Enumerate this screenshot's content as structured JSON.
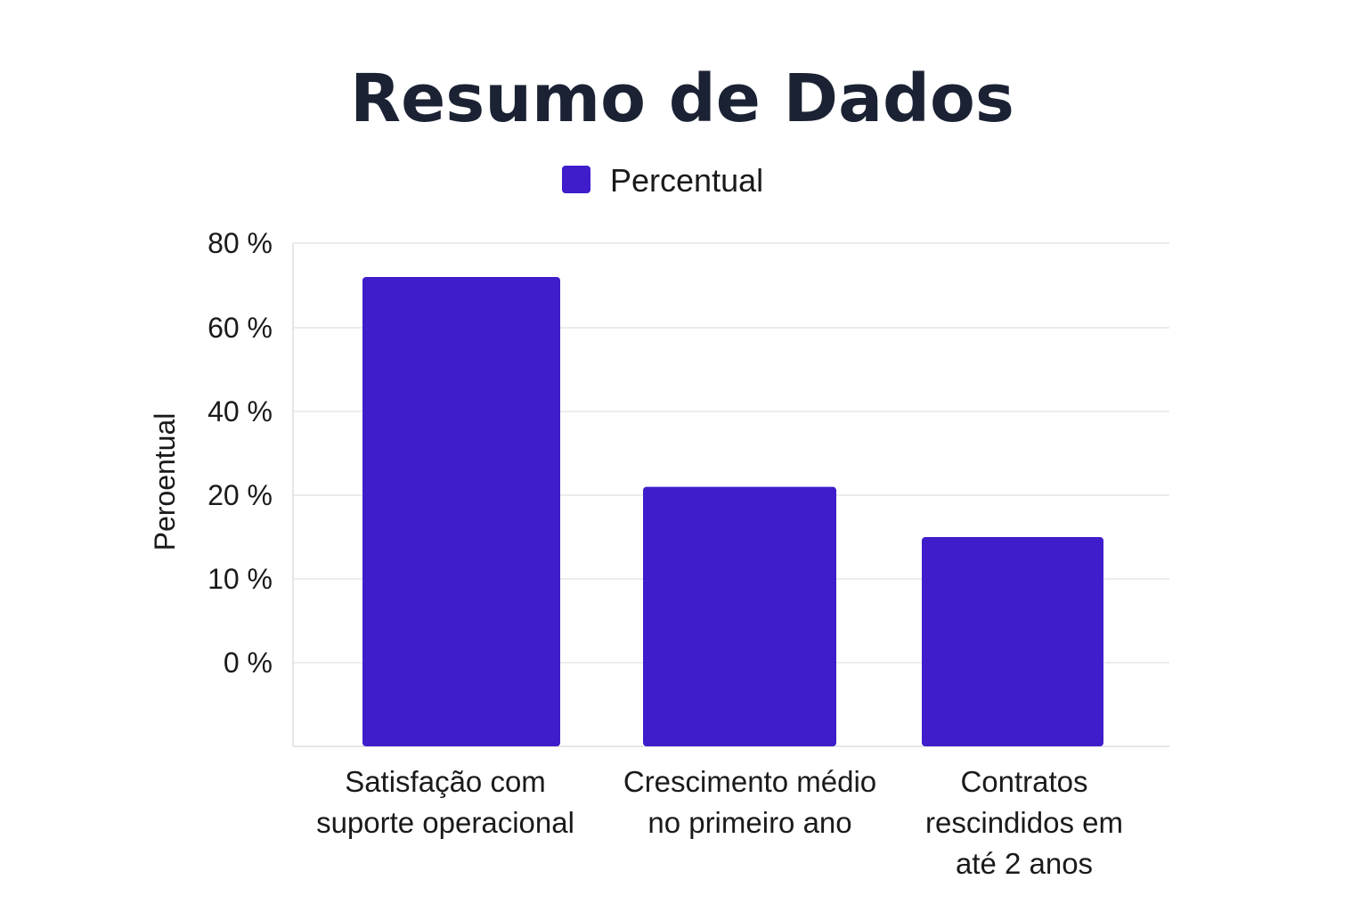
{
  "chart_data": {
    "type": "bar",
    "title": "Resumo de Dados",
    "ylabel": "Peroentual",
    "xlabel": "",
    "legend": {
      "position": "top-center",
      "entries": [
        "Percentual"
      ]
    },
    "y_ticks": [
      {
        "label": "80 %",
        "value": 80
      },
      {
        "label": "60 %",
        "value": 60
      },
      {
        "label": "40 %",
        "value": 40
      },
      {
        "label": "20 %",
        "value": 20
      },
      {
        "label": "10 %",
        "value": 10
      },
      {
        "label": "0 %",
        "value": 0
      }
    ],
    "grid": true,
    "categories": [
      [
        "Satisfação com",
        "suporte operacional"
      ],
      [
        "Crescimento médio",
        "no primeiro ano"
      ],
      [
        "Contratos",
        "rescindidos em",
        "até 2 anos"
      ]
    ],
    "series": [
      {
        "name": "Percentual",
        "values": [
          72,
          22,
          15
        ],
        "color": "#3f1dcb"
      }
    ],
    "ylim": [
      0,
      80
    ],
    "colors": {
      "bar": "#3f1dcb",
      "grid": "#e6e6e6",
      "axis": "#dddddd",
      "title": "#1a2233"
    }
  }
}
